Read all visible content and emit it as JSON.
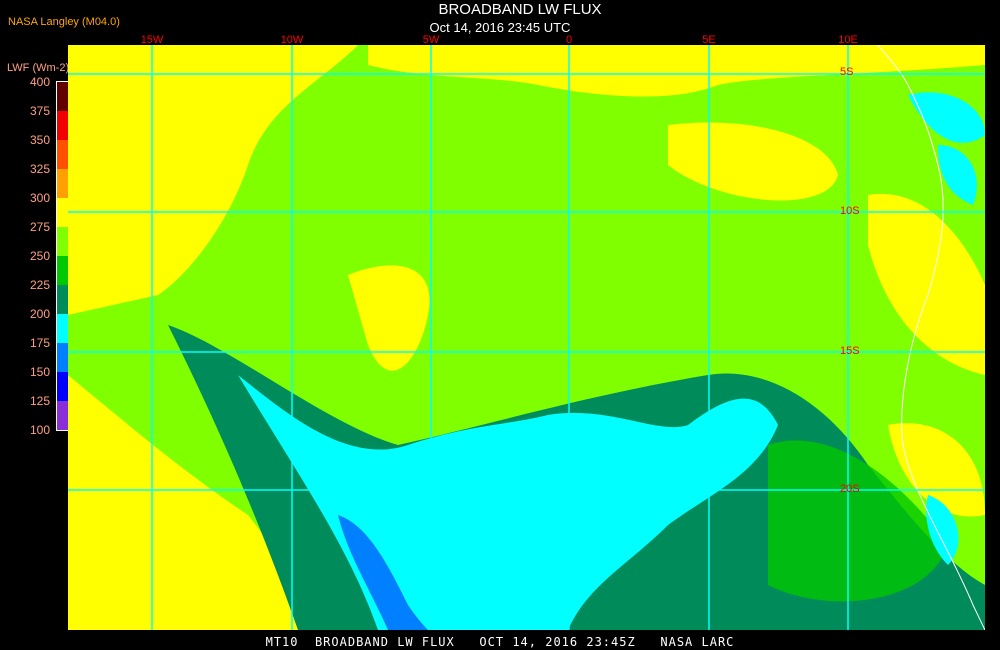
{
  "header": {
    "title": "BROADBAND LW FLUX",
    "subtitle": "Oct 14, 2016 23:45 UTC",
    "organization": "NASA Langley (M04.0)"
  },
  "legend": {
    "unit": "LWF (Wm-2)",
    "ticks": [
      "400",
      "375",
      "350",
      "325",
      "300",
      "275",
      "250",
      "225",
      "200",
      "175",
      "150",
      "125",
      "100"
    ],
    "colors": [
      "#8a2fd8",
      "#0000ff",
      "#0080ff",
      "#00ffff",
      "#008c5a",
      "#00c800",
      "#80ff00",
      "#ffff00",
      "#ffa000",
      "#ff5000",
      "#f00000",
      "#600000"
    ]
  },
  "map": {
    "longitude_labels": [
      "15W",
      "10W",
      "5W",
      "0",
      "5E",
      "10E"
    ],
    "latitude_labels": [
      "5S",
      "10S",
      "15S",
      "20S"
    ],
    "gridline_color": "#00ffff",
    "coastline_color": "#ffffff"
  },
  "footer": {
    "text": "MT10  BROADBAND LW FLUX   OCT 14, 2016 23:45Z   NASA LARC"
  }
}
